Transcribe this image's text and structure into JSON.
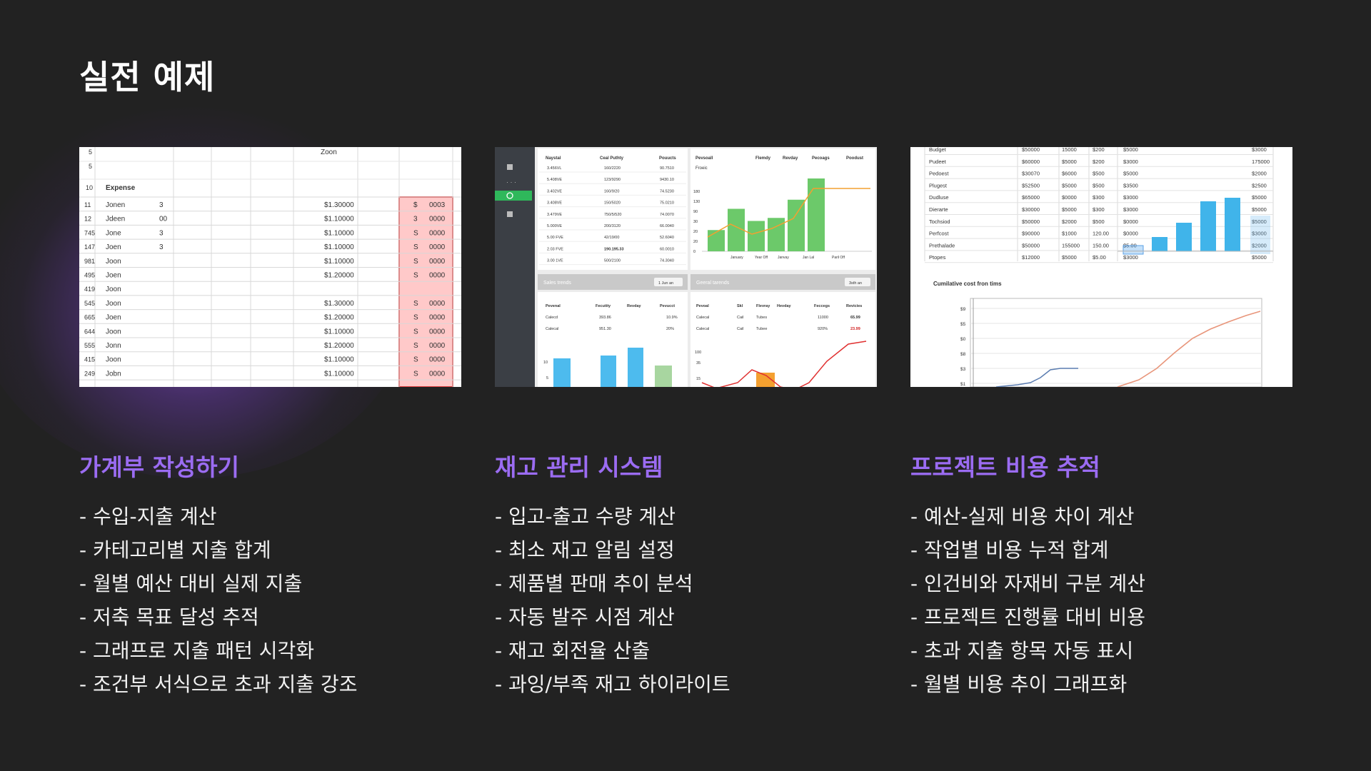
{
  "slide": {
    "title": "실전 예제"
  },
  "columns": [
    {
      "title": "가계부 작성하기",
      "items": [
        "- 수입-지출 계산",
        "- 카테고리별 지출 합계",
        "- 월별 예산 대비 실제 지출",
        "- 저축 목표 달성 추적",
        "- 그래프로 지출 패턴 시각화",
        "- 조건부 서식으로 초과 지출 강조"
      ]
    },
    {
      "title": "재고 관리 시스템",
      "items": [
        "- 입고-출고 수량 계산",
        "- 최소 재고 알림 설정",
        "- 제품별 판매 추이 분석",
        "- 자동 발주 시점 계산",
        "- 재고 회전율 산출",
        "- 과잉/부족 재고 하이라이트"
      ]
    },
    {
      "title": "프로젝트 비용 추적",
      "items": [
        "- 예산-실제 비용 차이 계산",
        "- 작업별 비용 누적 합계",
        "- 인건비와 자재비 구분 계산",
        "- 프로젝트 진행률 대비 비용",
        "- 초과 지출 항목 자동 표시",
        "- 월별 비용 추이 그래프화"
      ]
    }
  ],
  "thumb1": {
    "header": "Zoon",
    "section": "Expense",
    "top_rows": [
      "5",
      "5",
      "10"
    ],
    "rows": [
      {
        "n": "11",
        "name": "Jonen",
        "q": "3",
        "amt": "$1.30000",
        "cur": "$",
        "val": "0003"
      },
      {
        "n": "12",
        "name": "Jdeen",
        "q": "00",
        "amt": "$1.10000",
        "cur": "3",
        "val": "0000"
      },
      {
        "n": "745",
        "name": "Jone",
        "q": "3",
        "amt": "$1.10000",
        "cur": "S",
        "val": "0000"
      },
      {
        "n": "147",
        "name": "Joen",
        "q": "3",
        "amt": "$1.10000",
        "cur": "S",
        "val": "0000"
      },
      {
        "n": "981",
        "name": "Joon",
        "q": "",
        "amt": "$1.10000",
        "cur": "S",
        "val": "0000"
      },
      {
        "n": "495",
        "name": "Joen",
        "q": "",
        "amt": "$1.20000",
        "cur": "S",
        "val": "0000"
      },
      {
        "n": "419",
        "name": "Joon",
        "q": "",
        "amt": "",
        "cur": "",
        "val": ""
      },
      {
        "n": "545",
        "name": "Joon",
        "q": "",
        "amt": "$1.30000",
        "cur": "S",
        "val": "0000"
      },
      {
        "n": "665",
        "name": "Joen",
        "q": "",
        "amt": "$1.20000",
        "cur": "S",
        "val": "0000"
      },
      {
        "n": "644",
        "name": "Joon",
        "q": "",
        "amt": "$1.10000",
        "cur": "S",
        "val": "0000"
      },
      {
        "n": "555",
        "name": "Jonn",
        "q": "",
        "amt": "$1.20000",
        "cur": "S",
        "val": "0000"
      },
      {
        "n": "415",
        "name": "Joon",
        "q": "",
        "amt": "$1.10000",
        "cur": "S",
        "val": "0000"
      },
      {
        "n": "249",
        "name": "Jobn",
        "q": "",
        "amt": "$1.10000",
        "cur": "S",
        "val": "0000"
      }
    ]
  },
  "thumb2": {
    "table_headers": [
      "Naystal",
      "Ceal Puthty",
      "Pouucts"
    ],
    "table_rows": [
      [
        "3.456VL",
        "160/2220",
        "90.7510"
      ],
      [
        "5.408VE",
        "123/9290",
        "9430.10"
      ],
      [
        "3.402VE",
        "160/9/20",
        "74.5230"
      ],
      [
        "3.408VE",
        "150/5020",
        "75.0210"
      ],
      [
        "3.479VE",
        "750/5/520",
        "74.0070"
      ],
      [
        "5.000VE",
        "200/3120",
        "66.0040"
      ],
      [
        "5.00 FVE",
        "42/19/00",
        "52.6040"
      ],
      [
        "2.03 FVE",
        "190.195.33",
        "60.0010"
      ],
      [
        "3.00 1VE",
        "500/2100",
        "74.3040"
      ]
    ],
    "chart_headers": [
      "Pevsoall",
      "Flemdy",
      "Revday",
      "Pecoags",
      "Poodust"
    ],
    "chart_first_label": "Froeic",
    "chart_y": [
      "180",
      "130",
      "90",
      "30",
      "20",
      "20",
      "0"
    ],
    "chart_x": [
      "January",
      "Year Off",
      "Janvay",
      "Jan Lal",
      "Paril Off"
    ],
    "bar_values": [
      35,
      70,
      50,
      55,
      85,
      120
    ],
    "panel1_title": "Sales trends",
    "panel1_btn": "1 Jun an",
    "panel2_title": "Geeral tarends",
    "panel2_btn": "3sth an",
    "sub1_headers": [
      "Pevenal",
      "Fecutity",
      "Revday",
      "Pevucct"
    ],
    "sub1_rows": [
      [
        "Calecd",
        "393.86",
        "10.9%"
      ],
      [
        "Calecal",
        "951.30",
        "20%"
      ]
    ],
    "sub2_headers": [
      "Pevoal",
      "Skl",
      "Flevray",
      "Hevday",
      "Feccegs",
      "Revicies"
    ],
    "sub2_rows": [
      [
        "Calecal",
        "Cail",
        "Tubes",
        "11000",
        "65.99"
      ],
      [
        "Calecal",
        "Cail",
        "Tubee",
        "920%",
        "23.99"
      ]
    ],
    "sub1_y": [
      "10",
      "5"
    ],
    "sub2_y": [
      "100",
      "35",
      "15"
    ],
    "colors": {
      "green": "#6cc96a",
      "blue": "#4dbbee",
      "orange": "#f4a030",
      "red": "#e03030",
      "sidebar": "#3b3f45"
    }
  },
  "thumb3": {
    "rows": [
      [
        "Budget",
        "$50000",
        "15000",
        "$200",
        "$5000",
        "$3000"
      ],
      [
        "Pudeet",
        "$60000",
        "$5000",
        "$200",
        "$3000",
        "175000"
      ],
      [
        "Pedoest",
        "$30070",
        "$6000",
        "$500",
        "$5000",
        "$2000"
      ],
      [
        "Plugest",
        "$52500",
        "$5000",
        "$500",
        "$3500",
        "$2500"
      ],
      [
        "Dudluse",
        "$65000",
        "$0000",
        "$300",
        "$3000",
        "$5000"
      ],
      [
        "Dierarte",
        "$30000",
        "$5000",
        "$300",
        "$3000",
        "$5000"
      ],
      [
        "Tochsiod",
        "$50000",
        "$2000",
        "$500",
        "$0000",
        "$5000"
      ],
      [
        "Perfcost",
        "$90000",
        "$1000",
        "120.00",
        "$0000",
        "$3000"
      ],
      [
        "Prethalade",
        "$50000",
        "155000",
        "150.00",
        "$5.00",
        "$2000"
      ],
      [
        "Ptopes",
        "$12000",
        "$5000",
        "$5.00",
        "$3000",
        "$5000"
      ]
    ],
    "bar_values": [
      2,
      4,
      7,
      7.5
    ],
    "chart2_title": "Cumilative cost fron tims",
    "chart2_y": [
      "$9",
      "$5",
      "$0",
      "$8",
      "$3",
      "$1"
    ]
  }
}
